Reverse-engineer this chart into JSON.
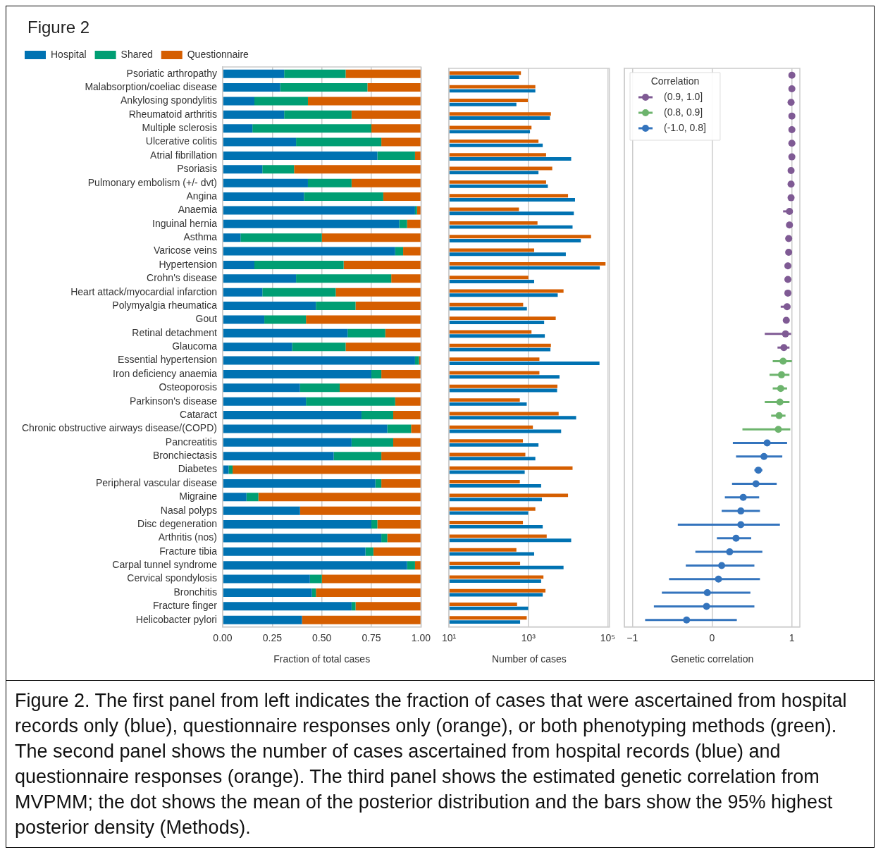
{
  "chart_data": [
    {
      "type": "bar",
      "title": "Figure 2",
      "orientation": "horizontal",
      "stacked": true,
      "legend": "top",
      "grid": "x",
      "xlabel": "Fraction of total cases",
      "annotations": [
        "Figure 2. The first panel from left indicates the fraction of cases that were ascertained from hospital records only (blue), questionnaire responses only (orange), or both phenotyping methods (green). The second panel shows the number of cases ascertained from hospital records (blue) and questionnaire responses (orange). The third panel shows the estimated genetic correlation from MVPMM; the dot shows the mean of the posterior distribution and the bars show the 95% highest posterior density (Methods)."
      ],
      "categories": [
        "Psoriatic arthropathy",
        "Malabsorption/coeliac disease",
        "Ankylosing spondylitis",
        "Rheumatoid arthritis",
        "Multiple sclerosis",
        "Ulcerative colitis",
        "Atrial fibrillation",
        "Psoriasis",
        "Pulmonary embolism (+/- dvt)",
        "Angina",
        "Anaemia",
        "Inguinal hernia",
        "Asthma",
        "Varicose veins",
        "Hypertension",
        "Crohn's disease",
        "Heart attack/myocardial infarction",
        "Polymyalgia rheumatica",
        "Gout",
        "Retinal detachment",
        "Glaucoma",
        "Essential hypertension",
        "Iron deficiency anaemia",
        "Osteoporosis",
        "Parkinson's disease",
        "Cataract",
        "Chronic obstructive airways disease/(COPD)",
        "Pancreatitis",
        "Bronchiectasis",
        "Diabetes",
        "Peripheral vascular disease",
        "Migraine",
        "Nasal polyps",
        "Disc degeneration",
        "Arthritis (nos)",
        "Fracture tibia",
        "Carpal tunnel syndrome",
        "Cervical spondylosis",
        "Bronchitis",
        "Fracture finger",
        "Helicobacter pylori"
      ],
      "xlim": [
        0,
        1
      ],
      "xticks": [
        {
          "value": 0,
          "label": "0.00"
        },
        {
          "value": 0.25,
          "label": "0.25"
        },
        {
          "value": 0.5,
          "label": "0.50"
        },
        {
          "value": 0.75,
          "label": "0.75"
        },
        {
          "value": 1,
          "label": "1.00"
        }
      ],
      "series": [
        {
          "name": "Hospital",
          "color": "#0072b2",
          "values": [
            0.31,
            0.29,
            0.16,
            0.31,
            0.15,
            0.37,
            0.78,
            0.2,
            0.43,
            0.41,
            0.97,
            0.89,
            0.09,
            0.87,
            0.16,
            0.37,
            0.2,
            0.47,
            0.21,
            0.63,
            0.35,
            0.97,
            0.75,
            0.39,
            0.42,
            0.7,
            0.83,
            0.65,
            0.56,
            0.03,
            0.77,
            0.12,
            0.39,
            0.75,
            0.8,
            0.72,
            0.93,
            0.44,
            0.45,
            0.65,
            0.4
          ]
        },
        {
          "name": "Shared",
          "color": "#009e73",
          "values": [
            0.31,
            0.44,
            0.27,
            0.34,
            0.6,
            0.43,
            0.19,
            0.16,
            0.22,
            0.4,
            0.01,
            0.04,
            0.41,
            0.04,
            0.45,
            0.48,
            0.37,
            0.2,
            0.21,
            0.19,
            0.27,
            0.02,
            0.05,
            0.2,
            0.45,
            0.16,
            0.12,
            0.21,
            0.24,
            0.02,
            0.03,
            0.06,
            0,
            0.03,
            0.03,
            0.04,
            0.04,
            0.06,
            0.02,
            0.02,
            0
          ]
        },
        {
          "name": "Questionnaire",
          "color": "#d55e00",
          "values": [
            0.38,
            0.27,
            0.57,
            0.35,
            0.25,
            0.2,
            0.03,
            0.64,
            0.35,
            0.19,
            0.02,
            0.07,
            0.5,
            0.09,
            0.39,
            0.15,
            0.43,
            0.33,
            0.58,
            0.18,
            0.38,
            0.01,
            0.2,
            0.41,
            0.13,
            0.14,
            0.05,
            0.14,
            0.2,
            0.95,
            0.2,
            0.82,
            0.61,
            0.22,
            0.17,
            0.24,
            0.03,
            0.5,
            0.53,
            0.33,
            0.6
          ]
        }
      ]
    },
    {
      "type": "bar",
      "orientation": "horizontal",
      "log": "x",
      "grid": "x",
      "tick_labels": "x",
      "xlabel": "Number of cases",
      "categories": [
        null,
        null,
        null,
        null,
        null,
        null,
        null,
        null,
        null,
        null,
        null,
        null,
        null,
        null,
        null,
        null,
        null,
        null,
        null,
        null,
        null,
        null,
        null,
        null,
        null,
        null,
        null,
        null,
        null,
        null,
        null,
        null,
        null,
        null,
        null,
        null,
        null,
        null,
        null,
        null,
        null
      ],
      "xlim": [
        10,
        110000
      ],
      "xticks": [
        {
          "value": 10,
          "label": "10¹"
        },
        {
          "value": 1000,
          "label": "10³"
        },
        {
          "value": 100000,
          "label": "10⁵"
        }
      ],
      "series": [
        {
          "color": "#d55e00",
          "values": [
            650,
            1500,
            970,
            3700,
            1200,
            1800,
            2800,
            4000,
            2800,
            10000,
            580,
            1700,
            38000,
            1400,
            88000,
            1000,
            7700,
            740,
            4900,
            1200,
            3700,
            1900,
            1900,
            5400,
            610,
            5800,
            1300,
            730,
            840,
            13000,
            610,
            10000,
            1500,
            730,
            2900,
            500,
            620,
            2400,
            2700,
            520,
            910
          ]
        },
        {
          "color": "#0072b2",
          "values": [
            580,
            1500,
            500,
            3500,
            1100,
            2300,
            12000,
            1800,
            3100,
            15000,
            14000,
            13000,
            21000,
            8800,
            63000,
            1400,
            5500,
            920,
            2500,
            2600,
            3600,
            62000,
            6100,
            5300,
            910,
            16000,
            6700,
            1800,
            1500,
            810,
            2100,
            2200,
            990,
            2300,
            12000,
            1400,
            7700,
            2100,
            2300,
            990,
            620
          ]
        }
      ]
    },
    {
      "type": "scatter",
      "orientation": "horizontal",
      "grid": "x",
      "tick_labels": "x",
      "xlabel": "Genetic correlation",
      "legend": "top left",
      "legend_title": "Correlation",
      "marker": "circle",
      "categories": [
        null,
        null,
        null,
        null,
        null,
        null,
        null,
        null,
        null,
        null,
        null,
        null,
        null,
        null,
        null,
        null,
        null,
        null,
        null,
        null,
        null,
        null,
        null,
        null,
        null,
        null,
        null,
        null,
        null,
        null,
        null,
        null,
        null,
        null,
        null,
        null,
        null,
        null,
        null,
        null,
        null
      ],
      "xlim": [
        -1.1,
        1.1
      ],
      "xticks": [
        {
          "value": -1,
          "label": "−1"
        },
        0,
        1
      ],
      "series": [
        {
          "name": "(0.9, 1.0]",
          "color": "#7f5a94",
          "values": [
            1.0,
            1.0,
            0.99,
            1.0,
            1.0,
            1.0,
            1.0,
            0.99,
            0.99,
            0.99,
            0.97,
            0.97,
            0.96,
            0.96,
            0.95,
            0.95,
            0.95,
            0.94,
            0.93,
            0.92,
            0.9,
            null,
            null,
            null,
            null,
            null,
            null,
            null,
            null,
            null,
            null,
            null,
            null,
            null,
            null,
            null,
            null,
            null,
            null,
            null,
            null
          ],
          "errors": [
            null,
            null,
            null,
            null,
            null,
            null,
            null,
            null,
            null,
            null,
            [
              0.89,
              1.0
            ],
            null,
            null,
            null,
            null,
            null,
            null,
            [
              0.86,
              0.98
            ],
            null,
            [
              0.66,
              0.99
            ],
            [
              0.82,
              0.97
            ],
            null,
            null,
            null,
            null,
            null,
            null,
            null,
            null,
            null,
            null,
            null,
            null,
            null,
            null,
            null,
            null,
            null,
            null,
            null,
            null
          ]
        },
        {
          "name": "(0.8, 0.9]",
          "color": "#6db46d",
          "values": [
            null,
            null,
            null,
            null,
            null,
            null,
            null,
            null,
            null,
            null,
            null,
            null,
            null,
            null,
            null,
            null,
            null,
            null,
            null,
            null,
            null,
            0.89,
            0.87,
            0.86,
            0.85,
            0.84,
            0.83,
            null,
            null,
            null,
            null,
            null,
            null,
            null,
            null,
            null,
            null,
            null,
            null,
            null,
            null
          ],
          "errors": [
            null,
            null,
            null,
            null,
            null,
            null,
            null,
            null,
            null,
            null,
            null,
            null,
            null,
            null,
            null,
            null,
            null,
            null,
            null,
            null,
            null,
            [
              0.76,
              1.0
            ],
            [
              0.72,
              0.97
            ],
            [
              0.76,
              0.94
            ],
            [
              0.66,
              0.97
            ],
            [
              0.74,
              0.92
            ],
            [
              0.38,
              0.98
            ],
            null,
            null,
            null,
            null,
            null,
            null,
            null,
            null,
            null,
            null,
            null,
            null,
            null,
            null
          ]
        },
        {
          "name": "(-1.0, 0.8]",
          "color": "#3474bd",
          "values": [
            null,
            null,
            null,
            null,
            null,
            null,
            null,
            null,
            null,
            null,
            null,
            null,
            null,
            null,
            null,
            null,
            null,
            null,
            null,
            null,
            null,
            null,
            null,
            null,
            null,
            null,
            null,
            0.69,
            0.65,
            0.58,
            0.55,
            0.39,
            0.36,
            0.36,
            0.3,
            0.22,
            0.12,
            0.08,
            -0.06,
            -0.07,
            -0.32
          ],
          "errors": [
            null,
            null,
            null,
            null,
            null,
            null,
            null,
            null,
            null,
            null,
            null,
            null,
            null,
            null,
            null,
            null,
            null,
            null,
            null,
            null,
            null,
            null,
            null,
            null,
            null,
            null,
            null,
            [
              0.26,
              0.94
            ],
            [
              0.3,
              0.88
            ],
            [
              0.53,
              0.63
            ],
            [
              0.25,
              0.81
            ],
            [
              0.16,
              0.59
            ],
            [
              0.12,
              0.6
            ],
            [
              -0.43,
              0.85
            ],
            [
              0.06,
              0.49
            ],
            [
              -0.21,
              0.63
            ],
            [
              -0.33,
              0.53
            ],
            [
              -0.54,
              0.6
            ],
            [
              -0.63,
              0.48
            ],
            [
              -0.73,
              0.53
            ],
            [
              -0.84,
              0.31
            ]
          ]
        }
      ]
    }
  ]
}
